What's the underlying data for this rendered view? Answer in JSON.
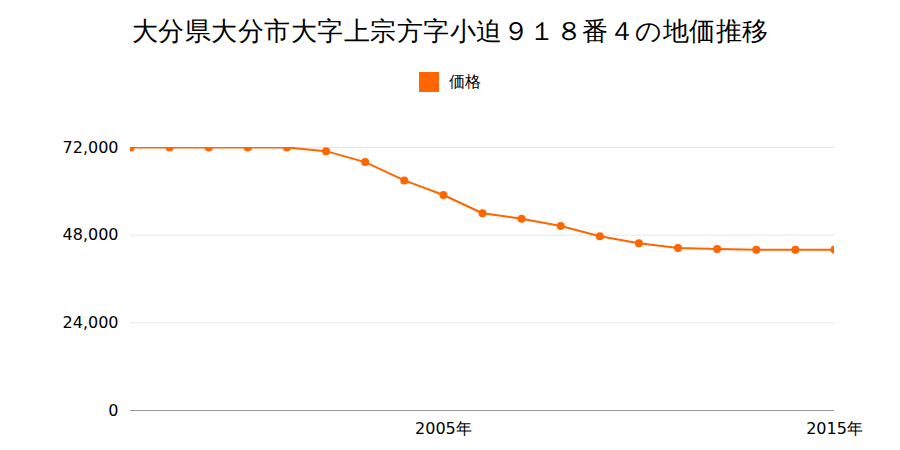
{
  "chart_data": {
    "type": "line",
    "title": "大分県大分市大字上宗方字小迫９１８番４の地価推移",
    "x": [
      1997,
      1998,
      1999,
      2000,
      2001,
      2002,
      2003,
      2004,
      2005,
      2006,
      2007,
      2008,
      2009,
      2010,
      2011,
      2012,
      2013,
      2014,
      2015
    ],
    "series": [
      {
        "name": "価格",
        "color": "#ff6600",
        "marker": "circle",
        "values": [
          72000,
          72000,
          72000,
          72000,
          72000,
          71000,
          68000,
          63000,
          59000,
          54000,
          52500,
          50500,
          47700,
          45800,
          44500,
          44200,
          44000,
          44000,
          44000
        ]
      }
    ],
    "xlim": [
      1997,
      2015
    ],
    "xticks": [
      {
        "value": 2005,
        "label": "2005年"
      },
      {
        "value": 2015,
        "label": "2015年"
      }
    ],
    "ylim": [
      0,
      72000
    ],
    "yticks": [
      0,
      {
        "value": 24000,
        "label": "24,000"
      },
      {
        "value": 48000,
        "label": "48,000"
      },
      {
        "value": 72000,
        "label": "72,000"
      }
    ],
    "grid": true,
    "legend": "top"
  }
}
